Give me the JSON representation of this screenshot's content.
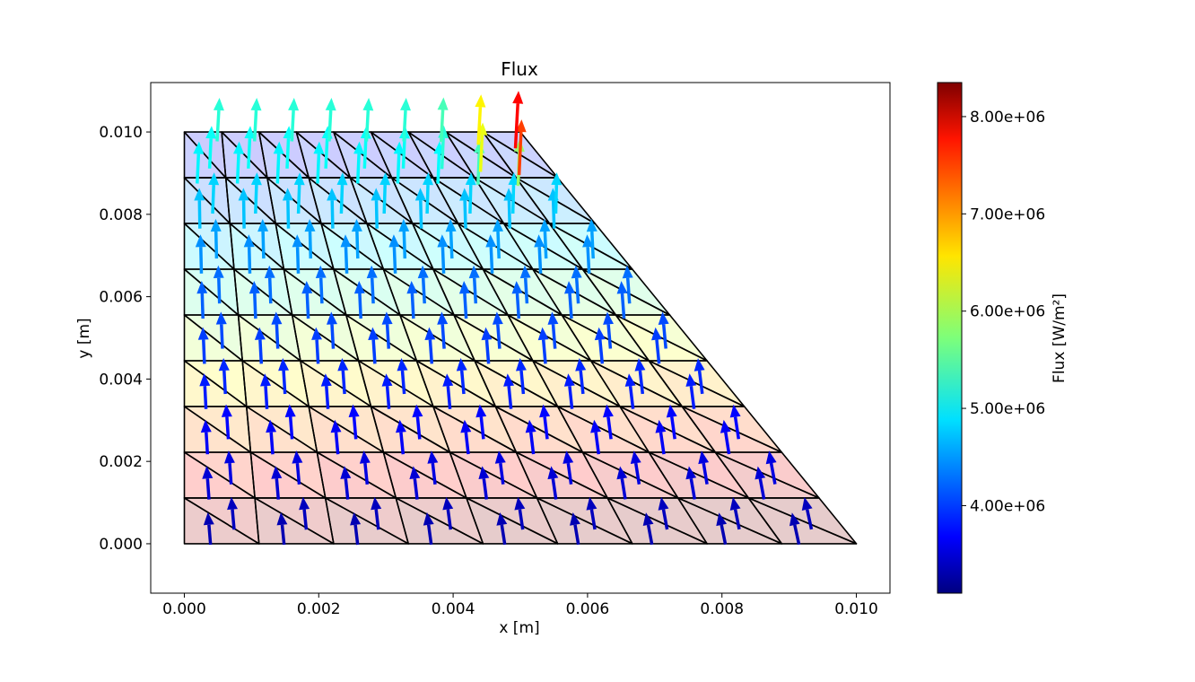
{
  "chart_data": {
    "type": "quiver",
    "title": "Flux",
    "xlabel": "x [m]",
    "ylabel": "y [m]",
    "xlim": [
      -0.0005,
      0.0105
    ],
    "ylim": [
      -0.0012,
      0.0112
    ],
    "x_ticks": [
      "0.000",
      "0.002",
      "0.004",
      "0.006",
      "0.008",
      "0.010"
    ],
    "y_ticks": [
      "0.000",
      "0.002",
      "0.004",
      "0.006",
      "0.008",
      "0.010"
    ],
    "x_tick_values": [
      0,
      0.002,
      0.004,
      0.006,
      0.008,
      0.01
    ],
    "y_tick_values": [
      0,
      0.002,
      0.004,
      0.006,
      0.008,
      0.01
    ],
    "colorbar": {
      "label": "Flux [W/m²]",
      "range": [
        3100000,
        8350000
      ],
      "ticks": [
        "4.00e+06",
        "5.00e+06",
        "6.00e+06",
        "7.00e+06",
        "8.00e+06"
      ],
      "tick_values": [
        4000000,
        5000000,
        6000000,
        7000000,
        8000000
      ],
      "colormap": "jet"
    },
    "mesh": {
      "domain_vertices": [
        [
          0,
          0
        ],
        [
          0.01,
          0
        ],
        [
          0.005,
          0.01
        ],
        [
          0,
          0.01
        ]
      ],
      "divisions_x": 9,
      "divisions_y": 9,
      "element": "triangle"
    },
    "field": {
      "direction": "mostly +y, tilting slightly toward -x near the lower right",
      "magnitude_bottom": 3300000,
      "magnitude_mid": 4300000,
      "magnitude_top": 5200000,
      "magnitude_max_at_top_right_corner": 8300000
    },
    "grid": false
  }
}
